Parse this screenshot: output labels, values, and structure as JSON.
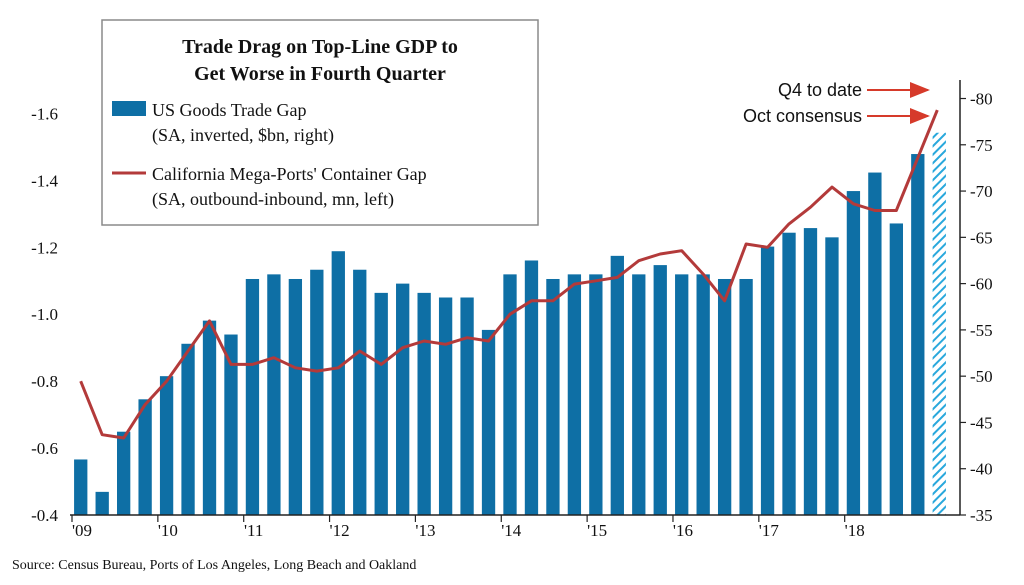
{
  "chart_data": {
    "type": "bar",
    "title": "Trade Drag on Top-Line GDP to Get Worse in Fourth Quarter",
    "title_lines": [
      "Trade Drag on Top-Line GDP to",
      "Get Worse in Fourth Quarter"
    ],
    "x_tick_labels": [
      "'09",
      "'10",
      "'11",
      "'12",
      "'13",
      "'14",
      "'15",
      "'16",
      "'17",
      "'18"
    ],
    "left_axis": {
      "min": -0.4,
      "max": -1.7,
      "ticks": [
        "-0.4",
        "-0.6",
        "-0.8",
        "-1.0",
        "-1.2",
        "-1.4",
        "-1.6"
      ]
    },
    "right_axis": {
      "min": -35,
      "max": -82,
      "ticks": [
        "-35",
        "-40",
        "-45",
        "-50",
        "-55",
        "-60",
        "-65",
        "-70",
        "-75",
        "-80"
      ]
    },
    "series": [
      {
        "name": "US Goods Trade Gap",
        "name_detail": "(SA, inverted, $bn, right)",
        "type": "bar",
        "axis": "right",
        "color": "#0e6fa5",
        "values": [
          -41.0,
          -37.5,
          -44.0,
          -47.5,
          -50.0,
          -53.5,
          -56.0,
          -54.5,
          -60.5,
          -61.0,
          -60.5,
          -61.5,
          -63.5,
          -61.5,
          -59.0,
          -60.0,
          -59.0,
          -58.5,
          -58.5,
          -55.0,
          -61.0,
          -62.5,
          -60.5,
          -61.0,
          -61.0,
          -63.0,
          -61.0,
          -62.0,
          -61.0,
          -61.0,
          -60.5,
          -60.5,
          -64.0,
          -65.5,
          -66.0,
          -65.0,
          -70.0,
          -72.0,
          -66.5,
          -74.0
        ],
        "forecast": {
          "label": "Oct consensus",
          "value": -76.3,
          "color": "#29a8dc"
        }
      },
      {
        "name": "California Mega-Ports' Container Gap",
        "name_detail": "(SA, outbound-inbound, mn, left)",
        "type": "line",
        "axis": "left",
        "color": "#b33a3a",
        "values": [
          -0.8,
          -0.64,
          -0.63,
          -0.73,
          -0.8,
          -0.89,
          -0.98,
          -0.85,
          -0.85,
          -0.87,
          -0.84,
          -0.83,
          -0.84,
          -0.89,
          -0.85,
          -0.9,
          -0.92,
          -0.91,
          -0.93,
          -0.92,
          -1.0,
          -1.04,
          -1.04,
          -1.09,
          -1.1,
          -1.11,
          -1.16,
          -1.18,
          -1.19,
          -1.12,
          -1.04,
          -1.21,
          -1.2,
          -1.27,
          -1.32,
          -1.38,
          -1.33,
          -1.31,
          -1.31,
          -1.61
        ],
        "q4_label": "Q4 to date"
      }
    ],
    "annotations": [
      "Q4 to date",
      "Oct consensus"
    ],
    "source": "Source:  Census Bureau, Ports of Los Angeles, Long Beach and Oakland",
    "grid": false,
    "legend_position": "top-left"
  }
}
